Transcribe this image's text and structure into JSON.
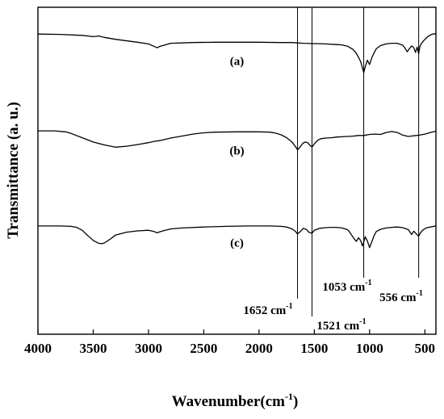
{
  "chart_data": {
    "type": "line",
    "xlabel": "Wavenumber(cm",
    "xlabel_sup": "-1",
    "xlabel_close": ")",
    "ylabel": "Transmittance (a. u.)",
    "xlim": [
      4000,
      400
    ],
    "x_reversed": true,
    "ylim": [
      0,
      1
    ],
    "y_ticks_shown": false,
    "grid": false,
    "x_ticks": [
      4000,
      3500,
      3000,
      2500,
      2000,
      1500,
      1000,
      500
    ],
    "x_tick_labels": [
      "4000",
      "3500",
      "3000",
      "2500",
      "2000",
      "1500",
      "1000",
      "500"
    ],
    "series": [
      {
        "name": "(a)",
        "x": [
          4000,
          3800,
          3600,
          3500,
          3450,
          3400,
          3300,
          3100,
          3000,
          2960,
          2920,
          2900,
          2850,
          2800,
          2600,
          2400,
          2200,
          2000,
          1800,
          1700,
          1600,
          1500,
          1400,
          1300,
          1250,
          1200,
          1150,
          1120,
          1100,
          1080,
          1065,
          1053,
          1040,
          1020,
          1000,
          980,
          960,
          940,
          900,
          850,
          800,
          750,
          700,
          680,
          660,
          640,
          620,
          600,
          585,
          570,
          556,
          545,
          530,
          510,
          490,
          470,
          450,
          430,
          400
        ],
        "y": [
          0.918,
          0.917,
          0.914,
          0.91,
          0.912,
          0.908,
          0.902,
          0.893,
          0.888,
          0.882,
          0.876,
          0.88,
          0.885,
          0.89,
          0.892,
          0.893,
          0.893,
          0.893,
          0.892,
          0.892,
          0.89,
          0.889,
          0.888,
          0.886,
          0.885,
          0.881,
          0.871,
          0.859,
          0.847,
          0.833,
          0.815,
          0.8,
          0.818,
          0.838,
          0.825,
          0.846,
          0.86,
          0.873,
          0.883,
          0.888,
          0.89,
          0.89,
          0.884,
          0.875,
          0.864,
          0.873,
          0.882,
          0.876,
          0.862,
          0.878,
          0.858,
          0.88,
          0.89,
          0.898,
          0.905,
          0.911,
          0.915,
          0.918,
          0.919
        ]
      },
      {
        "name": "(b)",
        "x": [
          4000,
          3850,
          3750,
          3700,
          3600,
          3500,
          3400,
          3300,
          3200,
          3100,
          3000,
          2950,
          2900,
          2850,
          2800,
          2700,
          2600,
          2500,
          2400,
          2200,
          2000,
          1900,
          1850,
          1800,
          1750,
          1700,
          1680,
          1660,
          1652,
          1640,
          1620,
          1600,
          1580,
          1560,
          1540,
          1521,
          1500,
          1480,
          1460,
          1440,
          1400,
          1350,
          1300,
          1250,
          1200,
          1150,
          1100,
          1050,
          1000,
          950,
          900,
          850,
          800,
          750,
          700,
          650,
          600,
          550,
          500,
          450,
          400
        ],
        "y": [
          0.622,
          0.622,
          0.619,
          0.614,
          0.601,
          0.588,
          0.579,
          0.572,
          0.575,
          0.58,
          0.586,
          0.59,
          0.592,
          0.596,
          0.6,
          0.606,
          0.612,
          0.616,
          0.618,
          0.619,
          0.619,
          0.618,
          0.615,
          0.61,
          0.601,
          0.587,
          0.578,
          0.569,
          0.564,
          0.568,
          0.577,
          0.585,
          0.588,
          0.586,
          0.578,
          0.572,
          0.582,
          0.59,
          0.595,
          0.598,
          0.6,
          0.601,
          0.603,
          0.604,
          0.605,
          0.606,
          0.608,
          0.608,
          0.611,
          0.612,
          0.611,
          0.617,
          0.62,
          0.617,
          0.609,
          0.605,
          0.607,
          0.609,
          0.612,
          0.617,
          0.621
        ]
      },
      {
        "name": "(c)",
        "x": [
          4000,
          3800,
          3700,
          3650,
          3600,
          3550,
          3500,
          3450,
          3420,
          3400,
          3350,
          3300,
          3200,
          3100,
          3000,
          2950,
          2920,
          2900,
          2850,
          2800,
          2700,
          2500,
          2300,
          2100,
          1900,
          1800,
          1750,
          1700,
          1670,
          1652,
          1630,
          1600,
          1570,
          1550,
          1521,
          1500,
          1450,
          1400,
          1350,
          1300,
          1250,
          1200,
          1180,
          1160,
          1140,
          1120,
          1100,
          1080,
          1065,
          1053,
          1040,
          1020,
          1000,
          980,
          960,
          940,
          900,
          850,
          800,
          750,
          700,
          650,
          620,
          600,
          580,
          556,
          540,
          520,
          500,
          480,
          450,
          400
        ],
        "y": [
          0.331,
          0.331,
          0.33,
          0.327,
          0.318,
          0.302,
          0.287,
          0.278,
          0.277,
          0.279,
          0.29,
          0.303,
          0.312,
          0.316,
          0.318,
          0.314,
          0.31,
          0.313,
          0.318,
          0.322,
          0.325,
          0.328,
          0.33,
          0.331,
          0.331,
          0.33,
          0.328,
          0.322,
          0.314,
          0.307,
          0.313,
          0.324,
          0.32,
          0.312,
          0.309,
          0.318,
          0.324,
          0.326,
          0.327,
          0.327,
          0.325,
          0.32,
          0.312,
          0.302,
          0.292,
          0.284,
          0.295,
          0.286,
          0.27,
          0.282,
          0.298,
          0.285,
          0.265,
          0.283,
          0.301,
          0.314,
          0.321,
          0.325,
          0.327,
          0.328,
          0.326,
          0.32,
          0.305,
          0.315,
          0.308,
          0.3,
          0.31,
          0.318,
          0.323,
          0.326,
          0.328,
          0.331
        ]
      }
    ],
    "annotations": [
      {
        "label": "1652 cm",
        "sup": "-1",
        "x": 1652
      },
      {
        "label": "1521 cm",
        "sup": "-1",
        "x": 1521
      },
      {
        "label": "1053 cm",
        "sup": "-1",
        "x": 1053
      },
      {
        "label": "556 cm",
        "sup": "-1",
        "x": 556
      }
    ]
  }
}
